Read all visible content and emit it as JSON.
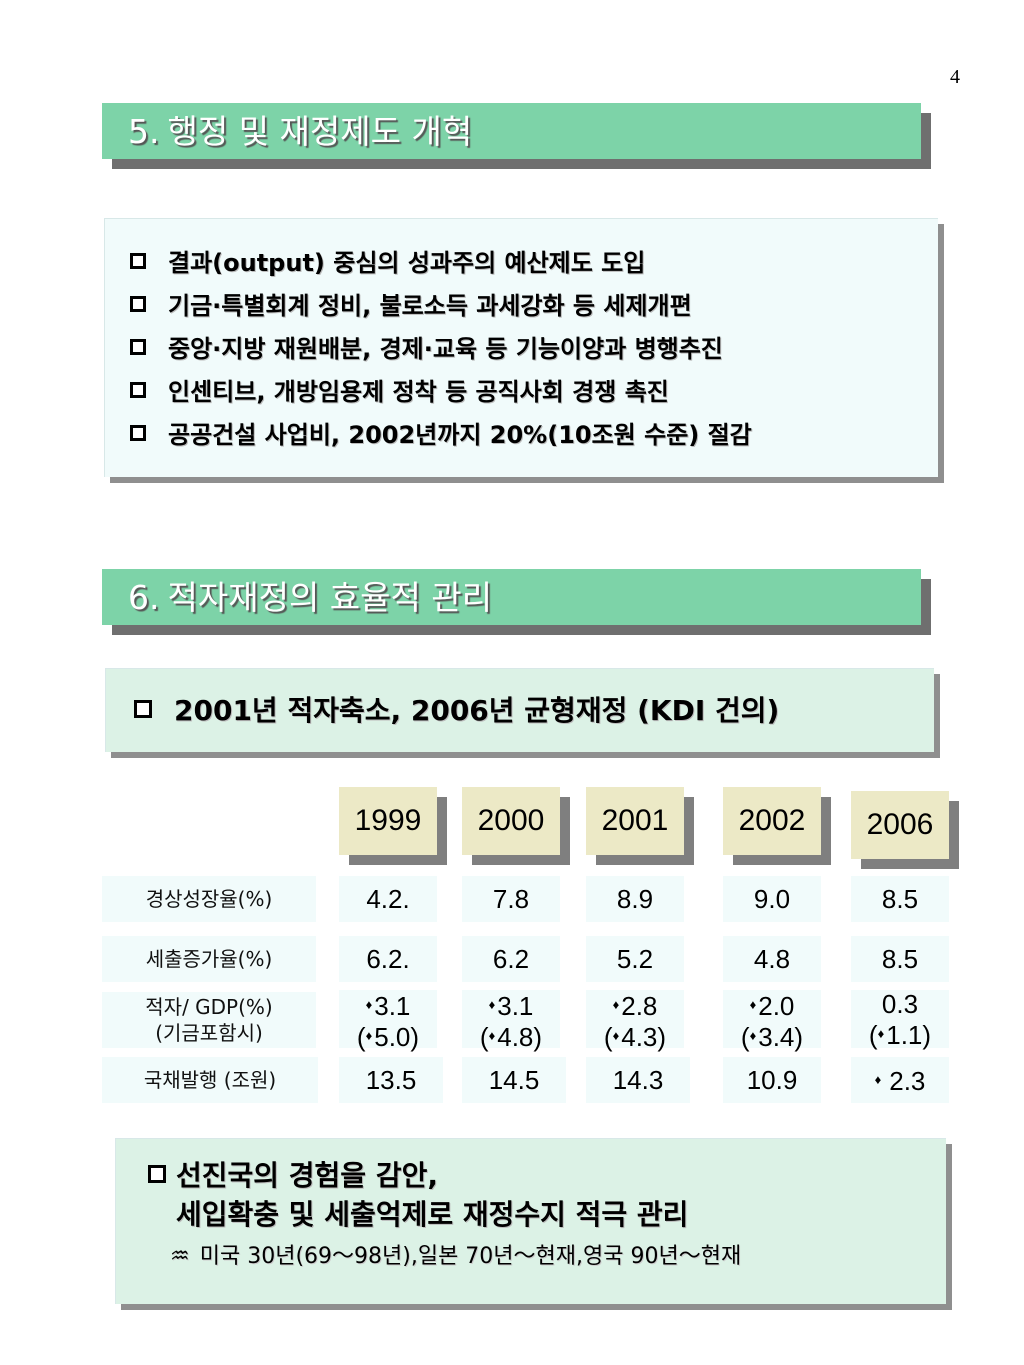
{
  "page_number": "4",
  "section5": {
    "number": "5.",
    "title": "행정 및 재정제도 개혁",
    "items": [
      "결과(output) 중심의 성과주의 예산제도 도입",
      "기금·특별회계 정비, 불로소득 과세강화 등 세제개편",
      "중앙·지방 재원배분, 경제·교육 등 기능이양과 병행추진",
      "인센티브, 개방임용제  정착 등 공직사회 경쟁 촉진",
      "공공건설 사업비, 2002년까지 20%(10조원 수준) 절감"
    ]
  },
  "section6": {
    "number": "6.",
    "title": "적자재정의 효율적 관리",
    "item": "2001년 적자축소, 2006년 균형재정 (KDI 건의)"
  },
  "table": {
    "years": [
      "1999",
      "2000",
      "2001",
      "2002",
      "2006"
    ],
    "rows": [
      {
        "label": "경상성장율(%)",
        "values": [
          "4.2.",
          "7.8",
          "8.9",
          "9.0",
          "8.5"
        ]
      },
      {
        "label": "세출증가율(%)",
        "values": [
          "6.2.",
          "6.2",
          "5.2",
          "4.8",
          "8.5"
        ]
      },
      {
        "label_line1": "적자/ GDP(%)",
        "label_line2": "(기금포함시)",
        "line1": [
          "3.1",
          "3.1",
          "2.8",
          "2.0",
          "0.3"
        ],
        "line2": [
          "5.0",
          "4.8",
          "4.3",
          "3.4",
          "1.1"
        ]
      },
      {
        "label": "국채발행 (조원)",
        "values": [
          "13.5",
          "14.5",
          "14.3",
          "10.9",
          "2.3"
        ]
      }
    ]
  },
  "bottom": {
    "line1": "선진국의 경험을 감안,",
    "line2": "세입확충 및 세출억제로 재정수지 적극 관리",
    "note_symbol": "♒",
    "note": "미국 30년(69～98년),일본 70년～현재,영국 90년～현재"
  }
}
